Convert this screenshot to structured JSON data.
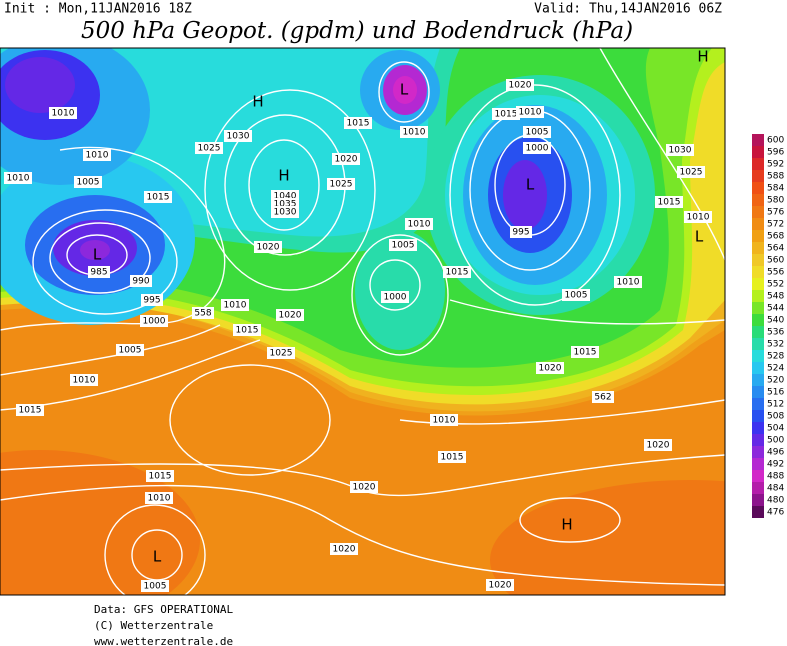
{
  "header": {
    "init": "Init : Mon,11JAN2016 18Z",
    "valid": "Valid: Thu,14JAN2016 06Z",
    "title": "500 hPa Geopot. (gpdm) und Bodendruck (hPa)"
  },
  "colorbar": {
    "levels": [
      600,
      596,
      592,
      588,
      584,
      580,
      576,
      572,
      568,
      564,
      560,
      556,
      552,
      548,
      544,
      540,
      536,
      532,
      528,
      524,
      520,
      516,
      512,
      508,
      504,
      500,
      496,
      492,
      488,
      484,
      480,
      476
    ],
    "colors": [
      "#b4145a",
      "#c8143c",
      "#dc2828",
      "#e63c1e",
      "#f05014",
      "#f06414",
      "#f07814",
      "#f08c14",
      "#f0a014",
      "#f0b41e",
      "#f0c828",
      "#f0dc28",
      "#e6f01e",
      "#b4f01e",
      "#78e628",
      "#3cdc3c",
      "#28dc78",
      "#28dcaa",
      "#28dcdc",
      "#28c8f0",
      "#28aaf0",
      "#288cf0",
      "#286ef0",
      "#2850f0",
      "#3c32f0",
      "#6428e6",
      "#8c28dc",
      "#b428d2",
      "#d228c8",
      "#b41eaa",
      "#8c148c",
      "#5a0a5a"
    ]
  },
  "map_labels": [
    "1010",
    "1010",
    "1010",
    "1005",
    "1015",
    "L",
    "985",
    "990",
    "995",
    "1000",
    "1005",
    "1010",
    "1015",
    "558",
    "1010",
    "1015",
    "1020",
    "1025",
    "1020",
    "H",
    "1030",
    "1025",
    "H",
    "1040",
    "1035",
    "1030",
    "1020",
    "1025",
    "1015",
    "L",
    "1010",
    "1020",
    "1015",
    "1010",
    "1005",
    "1000",
    "L",
    "995",
    "1030",
    "1025",
    "1015",
    "1010",
    "L",
    "H",
    "1010",
    "1005",
    "1000",
    "1015",
    "1005",
    "1010",
    "1015",
    "1020",
    "1010",
    "1015",
    "1020",
    "562",
    "1020",
    "H",
    "1015",
    "1010",
    "L",
    "1005",
    "1020",
    "1020"
  ],
  "footer": [
    "Data: GFS OPERATIONAL",
    "(C) Wetterzentrale",
    "www.wetterzentrale.de"
  ]
}
